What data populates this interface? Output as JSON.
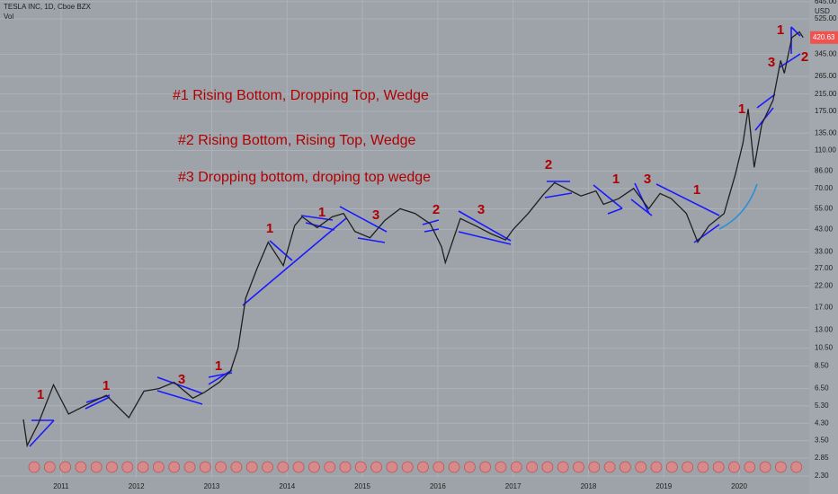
{
  "header": {
    "symbol": "TESLA INC, 1D, Cboe BZX",
    "indicator": "Vol",
    "currency": "USD"
  },
  "chart_data": {
    "type": "line",
    "log_scale": true,
    "grid": true,
    "color": "#1f1f1f",
    "x": [
      2010.5,
      2010.55,
      2010.7,
      2010.9,
      2011.1,
      2011.4,
      2011.6,
      2011.9,
      2012.1,
      2012.3,
      2012.5,
      2012.75,
      2012.9,
      2013.1,
      2013.25,
      2013.35,
      2013.45,
      2013.6,
      2013.75,
      2013.95,
      2014.1,
      2014.2,
      2014.4,
      2014.6,
      2014.75,
      2014.9,
      2015.1,
      2015.3,
      2015.5,
      2015.7,
      2015.9,
      2016.05,
      2016.1,
      2016.3,
      2016.5,
      2016.7,
      2016.9,
      2017.0,
      2017.2,
      2017.4,
      2017.55,
      2017.7,
      2017.9,
      2018.1,
      2018.2,
      2018.4,
      2018.6,
      2018.8,
      2018.95,
      2019.1,
      2019.3,
      2019.45,
      2019.6,
      2019.8,
      2019.95,
      2020.05,
      2020.12,
      2020.2,
      2020.3,
      2020.45,
      2020.55,
      2020.6,
      2020.7,
      2020.8,
      2020.85
    ],
    "series": [
      {
        "name": "TSLA",
        "color": "#1f1f1f",
        "values": [
          4.5,
          3.3,
          4.3,
          6.8,
          4.8,
          5.5,
          6.0,
          4.6,
          6.3,
          6.5,
          7.0,
          5.8,
          6.2,
          7.0,
          8.0,
          10.5,
          19,
          27,
          37,
          28,
          45,
          50,
          44,
          50,
          52,
          42,
          39,
          48,
          55,
          52,
          46,
          35,
          29,
          49,
          45,
          41,
          38,
          43,
          52,
          65,
          75,
          70,
          64,
          68,
          58,
          62,
          70,
          55,
          66,
          62,
          52,
          37,
          45,
          52,
          83,
          120,
          180,
          90,
          150,
          200,
          320,
          275,
          420,
          450,
          420.63
        ]
      }
    ],
    "price_label": {
      "value": 420.63,
      "label": "420.63"
    },
    "xlim": [
      2010.19,
      2020.93
    ],
    "xticks": [
      2011,
      2012,
      2013,
      2014,
      2015,
      2016,
      2017,
      2018,
      2019,
      2020
    ],
    "ylim": [
      2.25,
      657
    ],
    "yticks": [
      {
        "value": 2.3,
        "label": "2.30"
      },
      {
        "value": 2.85,
        "label": "2.85"
      },
      {
        "value": 3.5,
        "label": "3.50"
      },
      {
        "value": 4.3,
        "label": "4.30"
      },
      {
        "value": 5.3,
        "label": "5.30"
      },
      {
        "value": 6.5,
        "label": "6.50"
      },
      {
        "value": 8.5,
        "label": "8.50"
      },
      {
        "value": 10.5,
        "label": "10.50"
      },
      {
        "value": 13,
        "label": "13.00"
      },
      {
        "value": 17,
        "label": "17.00"
      },
      {
        "value": 22,
        "label": "22.00"
      },
      {
        "value": 27,
        "label": "27.00"
      },
      {
        "value": 33,
        "label": "33.00"
      },
      {
        "value": 43,
        "label": "43.00"
      },
      {
        "value": 55,
        "label": "55.00"
      },
      {
        "value": 70,
        "label": "70.00"
      },
      {
        "value": 86,
        "label": "86.00"
      },
      {
        "value": 110,
        "label": "110.00"
      },
      {
        "value": 135,
        "label": "135.00"
      },
      {
        "value": 175,
        "label": "175.00"
      },
      {
        "value": 215,
        "label": "215.00"
      },
      {
        "value": 265,
        "label": "265.00"
      },
      {
        "value": 345,
        "label": "345.00"
      },
      {
        "value": 525,
        "label": "525.00"
      },
      {
        "value": 645,
        "label": "645.00"
      }
    ],
    "annotations": [
      "#1 Rising Bottom, Dropping Top, Wedge",
      "#2 Rising Bottom, Rising Top, Wedge",
      "#3 Dropping bottom, droping top wedge"
    ],
    "pattern_labels": [
      "1",
      "1",
      "3",
      "1",
      "1",
      "1",
      "3",
      "2",
      "3",
      "2",
      "1",
      "3",
      "1",
      "1",
      "3",
      "1",
      "2"
    ]
  }
}
